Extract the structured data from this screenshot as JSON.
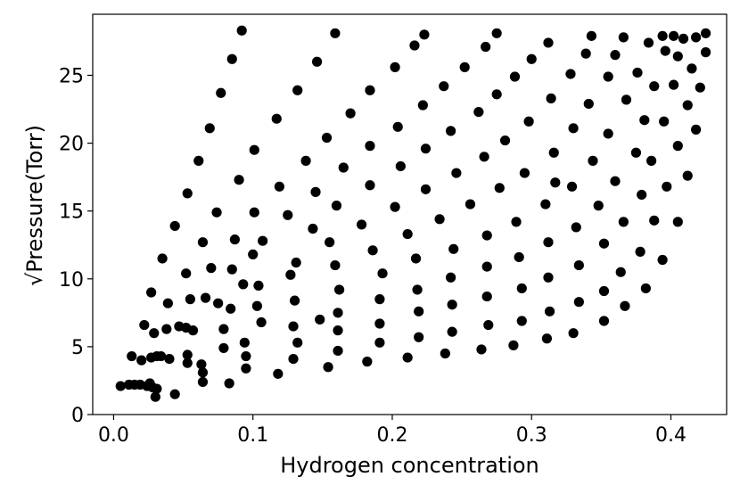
{
  "chart_data": {
    "type": "scatter",
    "title": "",
    "xlabel": "Hydrogen concentration",
    "ylabel": "√Pressure(Torr)",
    "xlim": [
      -0.015,
      0.44
    ],
    "ylim": [
      0,
      29.5
    ],
    "xticks": [
      0.0,
      0.1,
      0.2,
      0.3,
      0.4
    ],
    "xtick_labels": [
      "0.0",
      "0.1",
      "0.2",
      "0.3",
      "0.4"
    ],
    "yticks": [
      0,
      5,
      10,
      15,
      20,
      25
    ],
    "ytick_labels": [
      "0",
      "5",
      "10",
      "15",
      "20",
      "25"
    ],
    "grid": false,
    "legend": false,
    "marker_color": "#000000",
    "series": [
      {
        "points": [
          [
            0.005,
            2.1
          ],
          [
            0.011,
            2.2
          ],
          [
            0.013,
            4.3
          ],
          [
            0.015,
            2.2
          ],
          [
            0.019,
            2.2
          ],
          [
            0.02,
            4.0
          ],
          [
            0.022,
            6.6
          ],
          [
            0.024,
            2.1
          ],
          [
            0.026,
            2.3
          ],
          [
            0.027,
            4.2
          ],
          [
            0.027,
            9.0
          ],
          [
            0.028,
            2.0
          ],
          [
            0.029,
            6.0
          ],
          [
            0.03,
            1.3
          ],
          [
            0.031,
            1.9
          ],
          [
            0.031,
            4.3
          ],
          [
            0.034,
            4.3
          ],
          [
            0.035,
            11.5
          ],
          [
            0.038,
            6.3
          ],
          [
            0.039,
            8.2
          ],
          [
            0.04,
            4.1
          ],
          [
            0.044,
            1.5
          ],
          [
            0.044,
            13.9
          ],
          [
            0.047,
            6.5
          ],
          [
            0.052,
            6.4
          ],
          [
            0.052,
            10.4
          ],
          [
            0.053,
            4.4
          ],
          [
            0.053,
            3.8
          ],
          [
            0.053,
            16.3
          ],
          [
            0.055,
            8.5
          ],
          [
            0.057,
            6.2
          ],
          [
            0.063,
            3.7
          ],
          [
            0.064,
            12.7
          ],
          [
            0.064,
            3.1
          ],
          [
            0.064,
            2.4
          ],
          [
            0.066,
            8.6
          ],
          [
            0.061,
            18.7
          ],
          [
            0.069,
            21.1
          ],
          [
            0.07,
            10.8
          ],
          [
            0.074,
            14.9
          ],
          [
            0.075,
            8.2
          ],
          [
            0.077,
            23.7
          ],
          [
            0.079,
            6.3
          ],
          [
            0.079,
            4.9
          ],
          [
            0.083,
            2.3
          ],
          [
            0.084,
            7.8
          ],
          [
            0.085,
            10.7
          ],
          [
            0.085,
            26.2
          ],
          [
            0.087,
            12.9
          ],
          [
            0.09,
            17.3
          ],
          [
            0.092,
            28.3
          ],
          [
            0.093,
            9.6
          ],
          [
            0.094,
            5.3
          ],
          [
            0.095,
            4.3
          ],
          [
            0.095,
            3.4
          ],
          [
            0.1,
            11.8
          ],
          [
            0.101,
            19.5
          ],
          [
            0.101,
            14.9
          ],
          [
            0.103,
            8.0
          ],
          [
            0.104,
            9.5
          ],
          [
            0.106,
            6.8
          ],
          [
            0.107,
            12.8
          ],
          [
            0.117,
            21.8
          ],
          [
            0.118,
            3.0
          ],
          [
            0.119,
            16.8
          ],
          [
            0.125,
            14.7
          ],
          [
            0.127,
            10.3
          ],
          [
            0.129,
            6.5
          ],
          [
            0.129,
            4.1
          ],
          [
            0.13,
            8.4
          ],
          [
            0.131,
            11.2
          ],
          [
            0.132,
            5.3
          ],
          [
            0.132,
            23.9
          ],
          [
            0.138,
            18.7
          ],
          [
            0.143,
            13.7
          ],
          [
            0.145,
            16.4
          ],
          [
            0.146,
            26.0
          ],
          [
            0.148,
            7.0
          ],
          [
            0.153,
            20.4
          ],
          [
            0.154,
            3.5
          ],
          [
            0.155,
            12.7
          ],
          [
            0.159,
            28.1
          ],
          [
            0.159,
            11.0
          ],
          [
            0.16,
            15.4
          ],
          [
            0.161,
            4.7
          ],
          [
            0.161,
            6.2
          ],
          [
            0.161,
            7.5
          ],
          [
            0.162,
            9.2
          ],
          [
            0.165,
            18.2
          ],
          [
            0.17,
            22.2
          ],
          [
            0.178,
            14.0
          ],
          [
            0.182,
            3.9
          ],
          [
            0.184,
            23.9
          ],
          [
            0.184,
            16.9
          ],
          [
            0.184,
            19.8
          ],
          [
            0.186,
            12.1
          ],
          [
            0.191,
            5.3
          ],
          [
            0.191,
            6.7
          ],
          [
            0.191,
            8.5
          ],
          [
            0.193,
            10.4
          ],
          [
            0.202,
            25.6
          ],
          [
            0.202,
            15.3
          ],
          [
            0.204,
            21.2
          ],
          [
            0.206,
            18.3
          ],
          [
            0.211,
            4.2
          ],
          [
            0.211,
            13.3
          ],
          [
            0.216,
            27.2
          ],
          [
            0.217,
            11.5
          ],
          [
            0.218,
            9.2
          ],
          [
            0.219,
            7.6
          ],
          [
            0.219,
            5.7
          ],
          [
            0.222,
            22.8
          ],
          [
            0.223,
            28.0
          ],
          [
            0.224,
            16.6
          ],
          [
            0.224,
            19.6
          ],
          [
            0.234,
            14.4
          ],
          [
            0.237,
            24.2
          ],
          [
            0.238,
            4.5
          ],
          [
            0.242,
            20.9
          ],
          [
            0.242,
            10.1
          ],
          [
            0.243,
            6.1
          ],
          [
            0.243,
            8.1
          ],
          [
            0.244,
            12.2
          ],
          [
            0.246,
            17.8
          ],
          [
            0.252,
            25.6
          ],
          [
            0.256,
            15.5
          ],
          [
            0.262,
            22.3
          ],
          [
            0.264,
            4.8
          ],
          [
            0.266,
            19.0
          ],
          [
            0.267,
            27.1
          ],
          [
            0.268,
            13.2
          ],
          [
            0.268,
            10.9
          ],
          [
            0.268,
            8.7
          ],
          [
            0.269,
            6.6
          ],
          [
            0.275,
            28.1
          ],
          [
            0.275,
            23.6
          ],
          [
            0.277,
            16.7
          ],
          [
            0.281,
            20.2
          ],
          [
            0.287,
            5.1
          ],
          [
            0.288,
            24.9
          ],
          [
            0.289,
            14.2
          ],
          [
            0.291,
            11.6
          ],
          [
            0.293,
            9.3
          ],
          [
            0.293,
            6.9
          ],
          [
            0.295,
            17.8
          ],
          [
            0.298,
            21.6
          ],
          [
            0.3,
            26.2
          ],
          [
            0.31,
            15.5
          ],
          [
            0.311,
            5.6
          ],
          [
            0.312,
            27.4
          ],
          [
            0.312,
            10.1
          ],
          [
            0.312,
            12.7
          ],
          [
            0.313,
            7.6
          ],
          [
            0.314,
            23.3
          ],
          [
            0.316,
            19.3
          ],
          [
            0.317,
            17.1
          ],
          [
            0.328,
            25.1
          ],
          [
            0.329,
            16.8
          ],
          [
            0.33,
            21.1
          ],
          [
            0.33,
            6.0
          ],
          [
            0.332,
            13.8
          ],
          [
            0.334,
            11.0
          ],
          [
            0.334,
            8.3
          ],
          [
            0.339,
            26.6
          ],
          [
            0.341,
            22.9
          ],
          [
            0.343,
            27.9
          ],
          [
            0.344,
            18.7
          ],
          [
            0.348,
            15.4
          ],
          [
            0.352,
            6.9
          ],
          [
            0.352,
            12.6
          ],
          [
            0.352,
            9.1
          ],
          [
            0.355,
            24.9
          ],
          [
            0.355,
            20.7
          ],
          [
            0.36,
            17.2
          ],
          [
            0.36,
            26.5
          ],
          [
            0.364,
            10.5
          ],
          [
            0.366,
            27.8
          ],
          [
            0.366,
            14.2
          ],
          [
            0.367,
            8.0
          ],
          [
            0.368,
            23.2
          ],
          [
            0.375,
            19.3
          ],
          [
            0.376,
            25.2
          ],
          [
            0.378,
            12.0
          ],
          [
            0.379,
            16.2
          ],
          [
            0.381,
            21.7
          ],
          [
            0.382,
            9.3
          ],
          [
            0.384,
            27.4
          ],
          [
            0.386,
            18.7
          ],
          [
            0.388,
            14.3
          ],
          [
            0.388,
            24.2
          ],
          [
            0.394,
            27.9
          ],
          [
            0.394,
            11.4
          ],
          [
            0.395,
            21.6
          ],
          [
            0.396,
            26.8
          ],
          [
            0.397,
            16.8
          ],
          [
            0.402,
            24.3
          ],
          [
            0.402,
            27.9
          ],
          [
            0.405,
            26.4
          ],
          [
            0.405,
            19.8
          ],
          [
            0.405,
            14.2
          ],
          [
            0.409,
            27.7
          ],
          [
            0.412,
            17.6
          ],
          [
            0.412,
            22.8
          ],
          [
            0.415,
            25.5
          ],
          [
            0.418,
            27.8
          ],
          [
            0.418,
            21.0
          ],
          [
            0.421,
            24.1
          ],
          [
            0.425,
            26.7
          ],
          [
            0.425,
            28.1
          ]
        ]
      }
    ]
  }
}
